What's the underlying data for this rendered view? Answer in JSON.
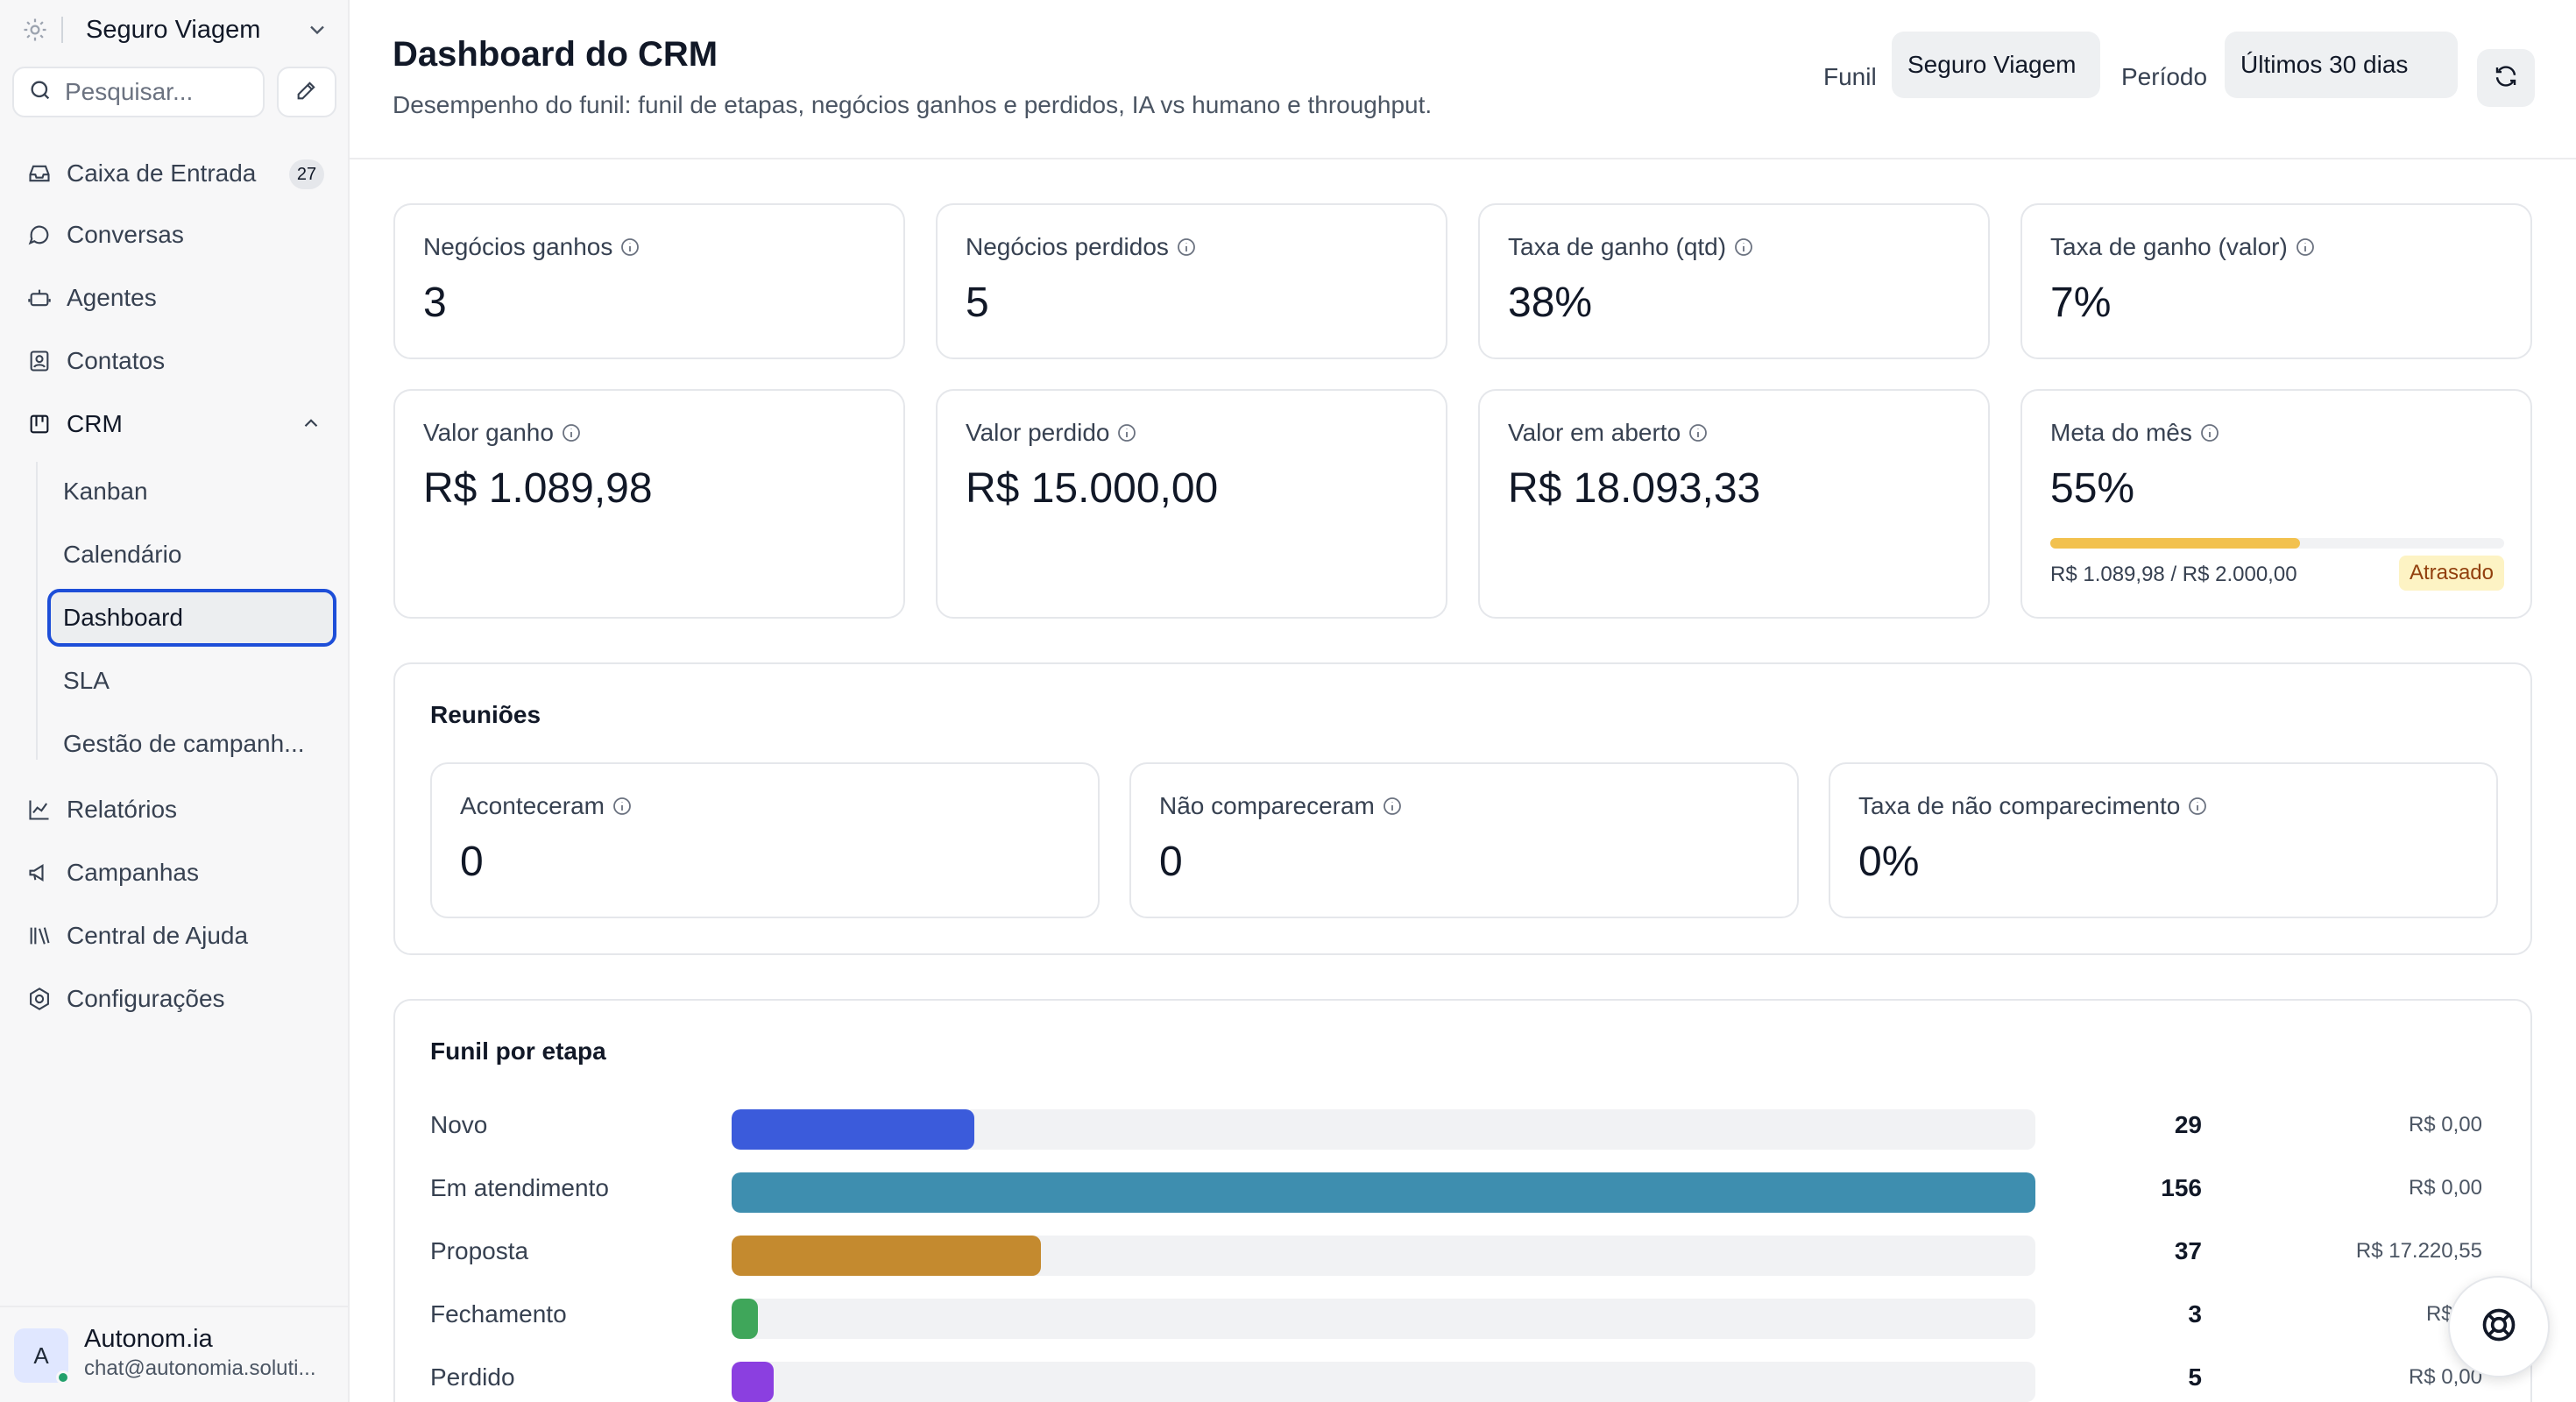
{
  "workspace": {
    "name": "Seguro Viagem"
  },
  "search": {
    "placeholder": "Pesquisar..."
  },
  "sidebar": {
    "items": [
      {
        "label": "Caixa de Entrada",
        "badge": "27",
        "icon": "inbox-icon"
      },
      {
        "label": "Conversas",
        "icon": "chat-bubble-icon"
      },
      {
        "label": "Agentes",
        "icon": "bot-icon"
      },
      {
        "label": "Contatos",
        "icon": "contact-card-icon"
      },
      {
        "label": "CRM",
        "icon": "kanban-board-icon"
      },
      {
        "label": "Relatórios",
        "icon": "line-chart-icon"
      },
      {
        "label": "Campanhas",
        "icon": "megaphone-icon"
      },
      {
        "label": "Central de Ajuda",
        "icon": "library-icon"
      },
      {
        "label": "Configurações",
        "icon": "gear-icon"
      }
    ],
    "crm_sub": [
      "Kanban",
      "Calendário",
      "Dashboard",
      "SLA",
      "Gestão de campanh..."
    ],
    "active_sub": "Dashboard"
  },
  "user": {
    "initial": "A",
    "name": "Autonom.ia",
    "email": "chat@autonomia.soluti..."
  },
  "header": {
    "title": "Dashboard do CRM",
    "subtitle": "Desempenho do funil: funil de etapas, negócios ganhos e perdidos, IA vs humano e throughput.",
    "funnel_label": "Funil",
    "funnel_value": "Seguro Viagem",
    "period_label": "Período",
    "period_value": "Últimos 30 dias"
  },
  "kpis": [
    {
      "label": "Negócios ganhos",
      "value": "3"
    },
    {
      "label": "Negócios perdidos",
      "value": "5"
    },
    {
      "label": "Taxa de ganho (qtd)",
      "value": "38%"
    },
    {
      "label": "Taxa de ganho (valor)",
      "value": "7%"
    },
    {
      "label": "Valor ganho",
      "value": "R$ 1.089,98"
    },
    {
      "label": "Valor perdido",
      "value": "R$ 15.000,00"
    },
    {
      "label": "Valor em aberto",
      "value": "R$ 18.093,33"
    }
  ],
  "goal": {
    "label": "Meta do mês",
    "value": "55%",
    "progress": 0.55,
    "detail": "R$ 1.089,98 / R$ 2.000,00",
    "status": "Atrasado"
  },
  "meetings": {
    "title": "Reuniões",
    "items": [
      {
        "label": "Aconteceram",
        "value": "0"
      },
      {
        "label": "Não compareceram",
        "value": "0"
      },
      {
        "label": "Taxa de não comparecimento",
        "value": "0%"
      }
    ]
  },
  "funnel": {
    "title": "Funil por etapa",
    "max": 156,
    "stages": [
      {
        "name": "Novo",
        "count": 29,
        "amount": "R$ 0,00",
        "color": "#3b5bdb"
      },
      {
        "name": "Em atendimento",
        "count": 156,
        "amount": "R$ 0,00",
        "color": "#3e8eaf"
      },
      {
        "name": "Proposta",
        "count": 37,
        "amount": "R$ 17.220,55",
        "color": "#c48a2f"
      },
      {
        "name": "Fechamento",
        "count": 3,
        "amount": "R$ 87",
        "color": "#3fa65a"
      },
      {
        "name": "Perdido",
        "count": 5,
        "amount": "R$ 0,00",
        "color": "#8b3fe0"
      }
    ]
  }
}
